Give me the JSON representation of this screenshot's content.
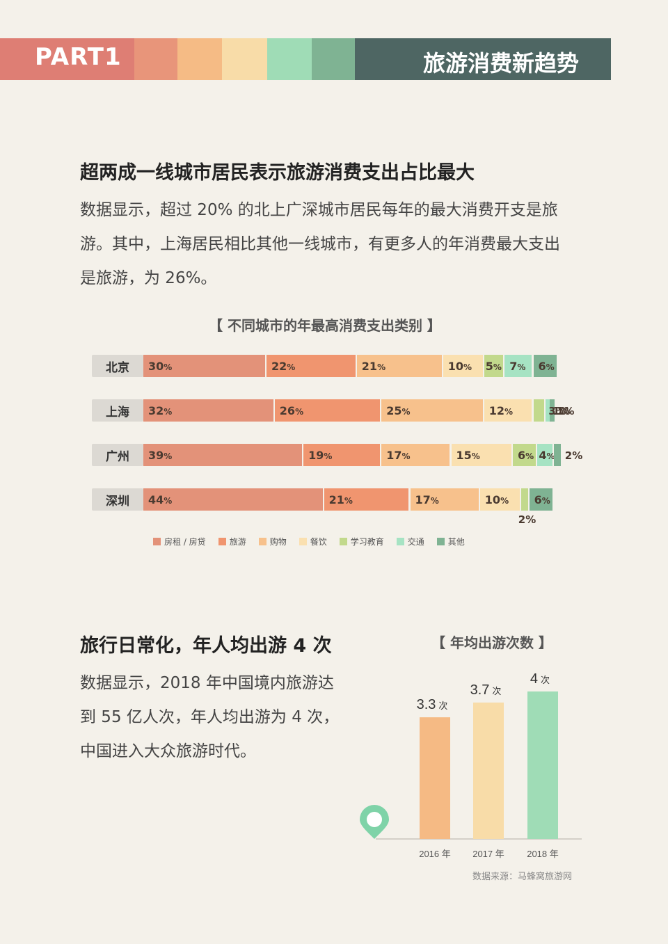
{
  "header": {
    "part_label": "PART1",
    "title": "旅游消费新趋势",
    "band_colors": [
      "#de7e74",
      "#e8957a",
      "#f5bb85",
      "#f8dca8",
      "#9fdcb6",
      "#7fb393",
      "#4e6663"
    ]
  },
  "section1": {
    "title": "超两成一线城市居民表示旅游消费支出占比最大",
    "para_lines": [
      "数据显示，超过 20% 的北上广深城市居民每年的最大消费开支是旅",
      "游。其中，上海居民相比其他一线城市，有更多人的年消费最大支出",
      "是旅游，为 26%。"
    ]
  },
  "chart_data": [
    {
      "type": "bar",
      "orientation": "horizontal-stacked",
      "title": "【 不同城市的年最高消费支出类别 】",
      "categories": [
        "北京",
        "上海",
        "广州",
        "深圳"
      ],
      "series": [
        {
          "name": "房租 / 房贷",
          "color": "#e39279",
          "values": [
            30,
            32,
            39,
            44
          ]
        },
        {
          "name": "旅游",
          "color": "#f0956f",
          "values": [
            22,
            26,
            19,
            21
          ]
        },
        {
          "name": "购物",
          "color": "#f7c18c",
          "values": [
            21,
            25,
            17,
            17
          ]
        },
        {
          "name": "餐饮",
          "color": "#fae0b0",
          "values": [
            10,
            12,
            15,
            10
          ]
        },
        {
          "name": "学习教育",
          "color": "#c2d98c",
          "values": [
            5,
            3,
            6,
            2
          ]
        },
        {
          "name": "交通",
          "color": "#a6e3c3",
          "values": [
            7,
            1,
            4,
            0
          ]
        },
        {
          "name": "其他",
          "color": "#7fb393",
          "values": [
            6,
            1,
            2,
            6
          ]
        }
      ],
      "percent_suffix": "%",
      "legend_position": "bottom"
    },
    {
      "type": "bar",
      "title": "【 年均出游次数 】",
      "categories": [
        "2016 年",
        "2017 年",
        "2018 年"
      ],
      "values": [
        3.3,
        3.7,
        4
      ],
      "value_labels": [
        "3.3",
        "3.7",
        "4"
      ],
      "unit": "次",
      "colors": [
        "#f5ba84",
        "#f8dca8",
        "#9fdcb6"
      ],
      "source": "数据来源：马蜂窝旅游网"
    }
  ],
  "section2": {
    "title": "旅行日常化，年人均出游 4 次",
    "para_lines": [
      "数据显示，2018 年中国境内旅游达",
      "到 55 亿人次，年人均出游为 4 次，",
      "中国进入大众旅游时代。"
    ]
  },
  "icons": {
    "map_pin": "location-pin-icon"
  }
}
